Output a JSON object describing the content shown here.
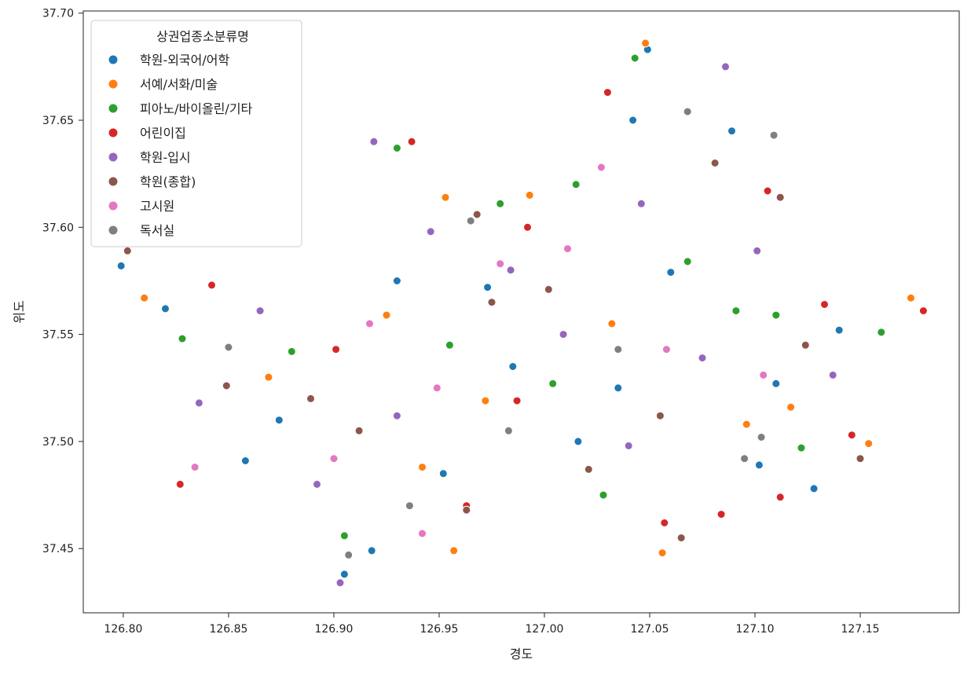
{
  "chart_data": {
    "type": "scatter",
    "title": "",
    "xlabel": "경도",
    "ylabel": "위도",
    "xlim": [
      126.781,
      127.197
    ],
    "ylim": [
      37.42,
      37.701
    ],
    "x_ticks": [
      126.8,
      126.85,
      126.9,
      126.95,
      127.0,
      127.05,
      127.1,
      127.15
    ],
    "x_tick_labels": [
      "126.80",
      "126.85",
      "126.90",
      "126.95",
      "127.00",
      "127.05",
      "127.10",
      "127.15"
    ],
    "y_ticks": [
      37.45,
      37.5,
      37.55,
      37.6,
      37.65,
      37.7
    ],
    "y_tick_labels": [
      "37.45",
      "37.50",
      "37.55",
      "37.60",
      "37.65",
      "37.70"
    ],
    "grid": false,
    "legend": {
      "title": "상권업종소분류명",
      "placement": "top-left"
    },
    "series": [
      {
        "name": "학원-외국어/어학",
        "color": "#1f77b4",
        "points": [
          [
            126.799,
            37.582
          ],
          [
            126.858,
            37.491
          ],
          [
            126.905,
            37.438
          ],
          [
            126.918,
            37.449
          ],
          [
            126.973,
            37.572
          ],
          [
            127.035,
            37.525
          ],
          [
            127.042,
            37.65
          ],
          [
            127.049,
            37.683
          ],
          [
            127.089,
            37.645
          ],
          [
            127.102,
            37.489
          ],
          [
            127.128,
            37.478
          ],
          [
            127.14,
            37.552
          ],
          [
            127.11,
            37.527
          ],
          [
            126.985,
            37.535
          ],
          [
            126.93,
            37.575
          ],
          [
            126.874,
            37.51
          ],
          [
            126.952,
            37.485
          ],
          [
            127.016,
            37.5
          ],
          [
            127.06,
            37.579
          ],
          [
            126.82,
            37.562
          ]
        ]
      },
      {
        "name": "서예/서화/미술",
        "color": "#ff7f0e",
        "points": [
          [
            126.957,
            37.449
          ],
          [
            127.056,
            37.448
          ],
          [
            126.953,
            37.614
          ],
          [
            127.048,
            37.686
          ],
          [
            127.174,
            37.567
          ],
          [
            127.154,
            37.499
          ],
          [
            127.117,
            37.516
          ],
          [
            126.972,
            37.519
          ],
          [
            127.096,
            37.508
          ],
          [
            126.925,
            37.559
          ],
          [
            126.869,
            37.53
          ],
          [
            126.993,
            37.615
          ],
          [
            127.032,
            37.555
          ],
          [
            126.942,
            37.488
          ],
          [
            126.81,
            37.567
          ]
        ]
      },
      {
        "name": "피아노/바이올린/기타",
        "color": "#2ca02c",
        "points": [
          [
            126.979,
            37.611
          ],
          [
            127.028,
            37.475
          ],
          [
            127.16,
            37.551
          ],
          [
            127.11,
            37.559
          ],
          [
            126.88,
            37.542
          ],
          [
            126.93,
            37.637
          ],
          [
            127.043,
            37.679
          ],
          [
            127.068,
            37.584
          ],
          [
            127.004,
            37.527
          ],
          [
            126.955,
            37.545
          ],
          [
            126.905,
            37.456
          ],
          [
            127.091,
            37.561
          ],
          [
            127.122,
            37.497
          ],
          [
            127.015,
            37.62
          ],
          [
            126.828,
            37.548
          ]
        ]
      },
      {
        "name": "어린이집",
        "color": "#d62728",
        "points": [
          [
            126.827,
            37.48
          ],
          [
            126.937,
            37.64
          ],
          [
            127.106,
            37.617
          ],
          [
            127.133,
            37.564
          ],
          [
            127.084,
            37.466
          ],
          [
            127.18,
            37.561
          ],
          [
            126.987,
            37.519
          ],
          [
            127.112,
            37.474
          ],
          [
            126.992,
            37.6
          ],
          [
            126.901,
            37.543
          ],
          [
            126.963,
            37.47
          ],
          [
            127.03,
            37.663
          ],
          [
            127.057,
            37.462
          ],
          [
            126.842,
            37.573
          ],
          [
            127.146,
            37.503
          ]
        ]
      },
      {
        "name": "학원-입시",
        "color": "#9467bd",
        "points": [
          [
            126.903,
            37.434
          ],
          [
            127.086,
            37.675
          ],
          [
            126.919,
            37.64
          ],
          [
            127.046,
            37.611
          ],
          [
            126.865,
            37.561
          ],
          [
            126.946,
            37.598
          ],
          [
            127.009,
            37.55
          ],
          [
            127.075,
            37.539
          ],
          [
            127.137,
            37.531
          ],
          [
            126.892,
            37.48
          ],
          [
            127.04,
            37.498
          ],
          [
            126.984,
            37.58
          ],
          [
            127.101,
            37.589
          ],
          [
            126.93,
            37.512
          ],
          [
            126.836,
            37.518
          ]
        ]
      },
      {
        "name": "학원(종합)",
        "color": "#8c564b",
        "points": [
          [
            126.802,
            37.589
          ],
          [
            127.112,
            37.614
          ],
          [
            126.968,
            37.606
          ],
          [
            127.065,
            37.455
          ],
          [
            126.963,
            37.468
          ],
          [
            126.849,
            37.526
          ],
          [
            126.912,
            37.505
          ],
          [
            127.021,
            37.487
          ],
          [
            127.055,
            37.512
          ],
          [
            127.124,
            37.545
          ],
          [
            126.975,
            37.565
          ],
          [
            127.081,
            37.63
          ],
          [
            126.889,
            37.52
          ],
          [
            127.002,
            37.571
          ],
          [
            127.15,
            37.492
          ]
        ]
      },
      {
        "name": "고시원",
        "color": "#e377c2",
        "points": [
          [
            126.942,
            37.457
          ],
          [
            126.834,
            37.488
          ],
          [
            126.979,
            37.583
          ],
          [
            127.027,
            37.628
          ],
          [
            127.104,
            37.531
          ],
          [
            126.949,
            37.525
          ],
          [
            127.058,
            37.543
          ],
          [
            126.917,
            37.555
          ],
          [
            127.011,
            37.59
          ],
          [
            126.9,
            37.492
          ]
        ]
      },
      {
        "name": "독서실",
        "color": "#7f7f7f",
        "points": [
          [
            127.109,
            37.643
          ],
          [
            126.965,
            37.603
          ],
          [
            127.103,
            37.502
          ],
          [
            126.936,
            37.47
          ],
          [
            126.907,
            37.447
          ],
          [
            127.068,
            37.654
          ],
          [
            126.85,
            37.544
          ],
          [
            127.095,
            37.492
          ],
          [
            127.035,
            37.543
          ],
          [
            126.983,
            37.505
          ]
        ]
      }
    ]
  }
}
